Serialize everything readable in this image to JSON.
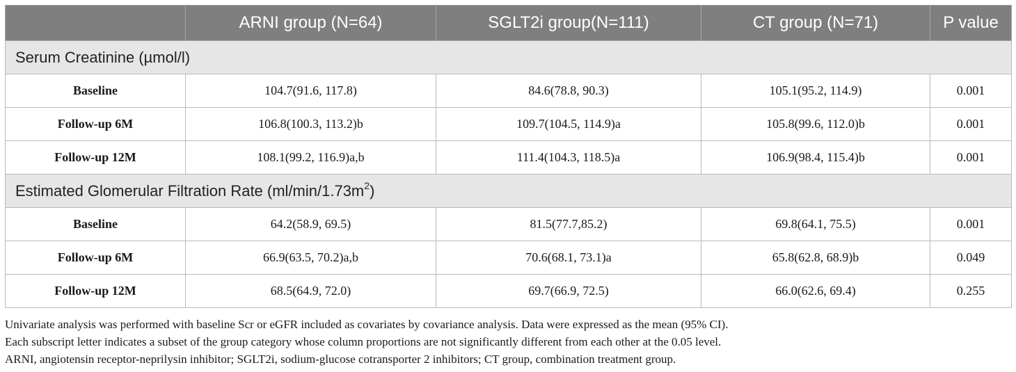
{
  "headers": [
    "",
    "ARNI group (N=64)",
    "SGLT2i group(N=111)",
    "CT group (N=71)",
    "P value"
  ],
  "sections": [
    {
      "title": "Serum Creatinine (µmol/l)",
      "title_sup": "",
      "title_tail": "",
      "rows": [
        {
          "label": "Baseline",
          "arni": "104.7(91.6, 117.8)",
          "sglt2i": "84.6(78.8, 90.3)",
          "ct": "105.1(95.2, 114.9)",
          "p": "0.001"
        },
        {
          "label": "Follow-up 6M",
          "arni": "106.8(100.3, 113.2)b",
          "sglt2i": "109.7(104.5, 114.9)a",
          "ct": "105.8(99.6, 112.0)b",
          "p": "0.001"
        },
        {
          "label": "Follow-up 12M",
          "arni": "108.1(99.2, 116.9)a,b",
          "sglt2i": "111.4(104.3, 118.5)a",
          "ct": "106.9(98.4, 115.4)b",
          "p": "0.001"
        }
      ]
    },
    {
      "title": "Estimated Glomerular Filtration Rate (ml/min/1.73m",
      "title_sup": "2",
      "title_tail": ")",
      "rows": [
        {
          "label": "Baseline",
          "arni": "64.2(58.9, 69.5)",
          "sglt2i": "81.5(77.7,85.2)",
          "ct": "69.8(64.1, 75.5)",
          "p": "0.001"
        },
        {
          "label": "Follow-up 6M",
          "arni": "66.9(63.5, 70.2)a,b",
          "sglt2i": "70.6(68.1, 73.1)a",
          "ct": "65.8(62.8, 68.9)b",
          "p": "0.049"
        },
        {
          "label": "Follow-up 12M",
          "arni": "68.5(64.9, 72.0)",
          "sglt2i": "69.7(66.9, 72.5)",
          "ct": "66.0(62.6, 69.4)",
          "p": "0.255"
        }
      ]
    }
  ],
  "notes": [
    "Univariate analysis was performed with baseline Scr or eGFR included as covariates by covariance analysis. Data were expressed as the mean (95% CI).",
    "Each subscript letter indicates a subset of the group category whose column proportions are not significantly different from each other at the 0.05 level.",
    "ARNI, angiotensin receptor-neprilysin inhibitor; SGLT2i, sodium-glucose cotransporter 2 inhibitors; CT group, combination treatment group."
  ],
  "colors": {
    "header_bg": "#7f7f7f",
    "section_bg": "#e6e6e6",
    "border": "#b9b9b9"
  }
}
